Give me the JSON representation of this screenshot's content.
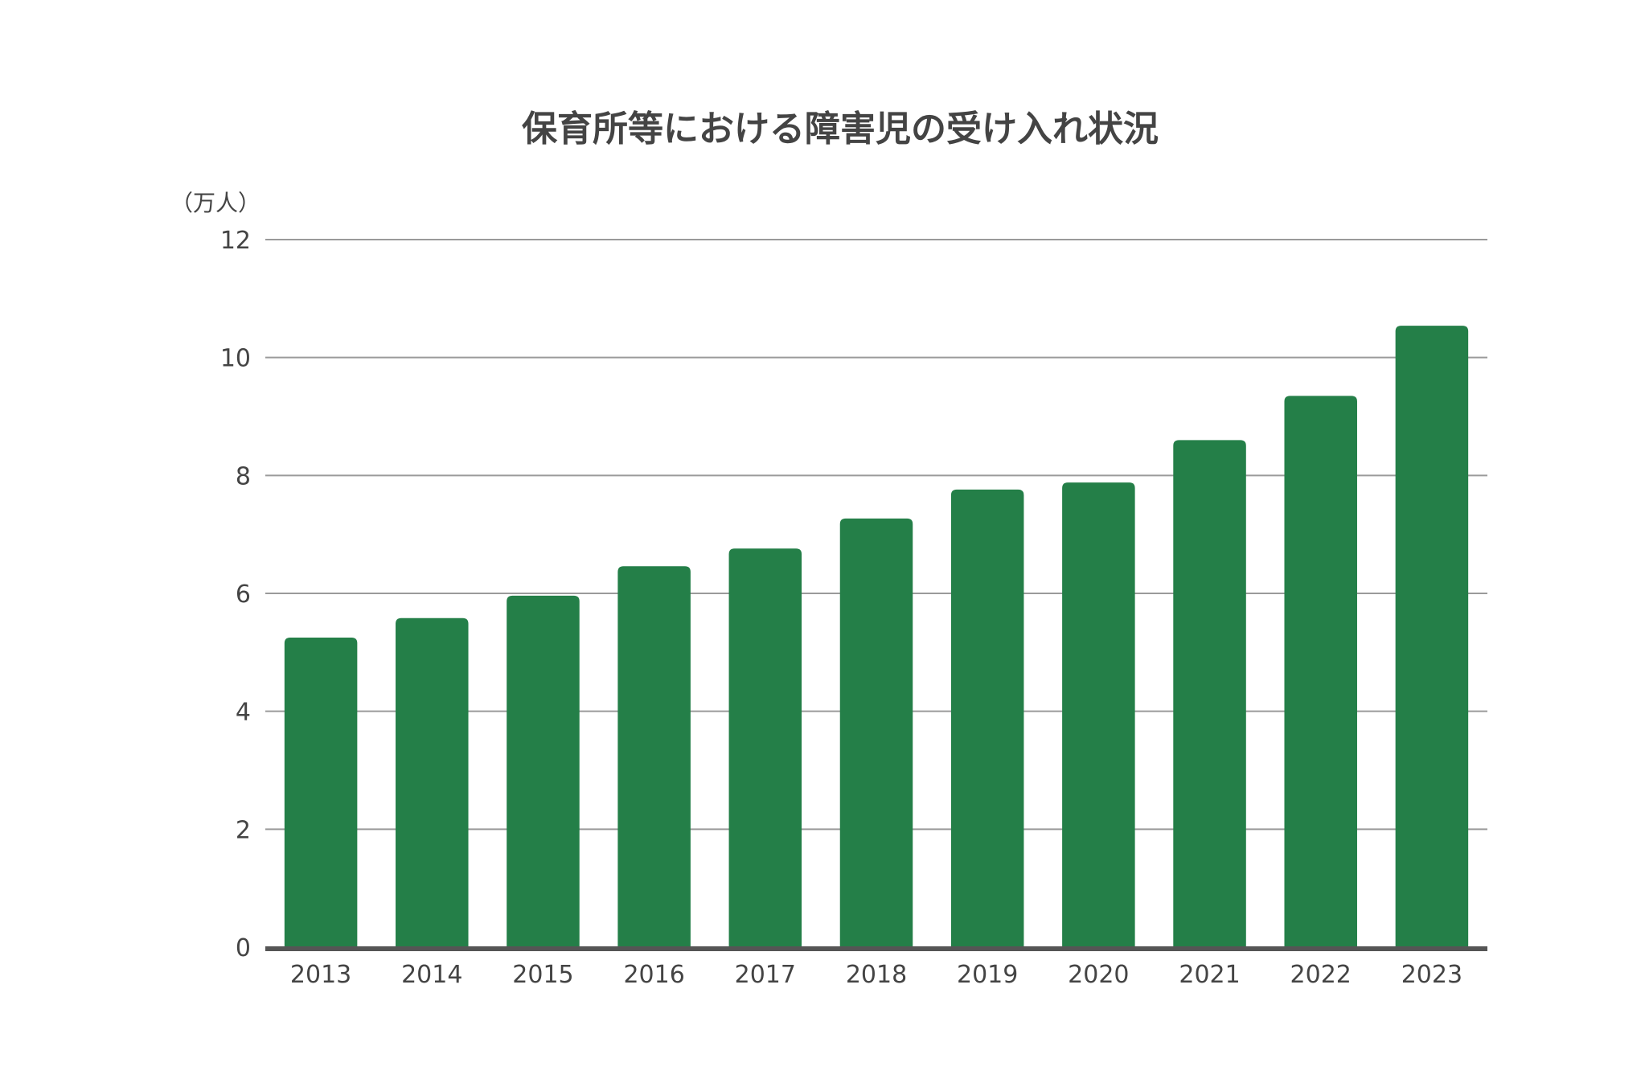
{
  "chart_data": {
    "type": "bar",
    "title": "保育所等における障害児の受け入れ状況",
    "ylabel": "（万人）",
    "xlabel": "",
    "categories": [
      "2013",
      "2014",
      "2015",
      "2016",
      "2017",
      "2018",
      "2019",
      "2020",
      "2021",
      "2022",
      "2023"
    ],
    "values": [
      5.25,
      5.58,
      5.96,
      6.46,
      6.76,
      7.27,
      7.76,
      7.88,
      8.6,
      9.35,
      10.54
    ],
    "ylim": [
      0,
      12
    ],
    "yticks": [
      "0",
      "2",
      "4",
      "6",
      "8",
      "10",
      "12"
    ],
    "grid": true,
    "legend": "none",
    "colors": {
      "bar": "#247f48",
      "grid": "#9a9a9a",
      "axis": "#555555",
      "text": "#444444"
    }
  }
}
